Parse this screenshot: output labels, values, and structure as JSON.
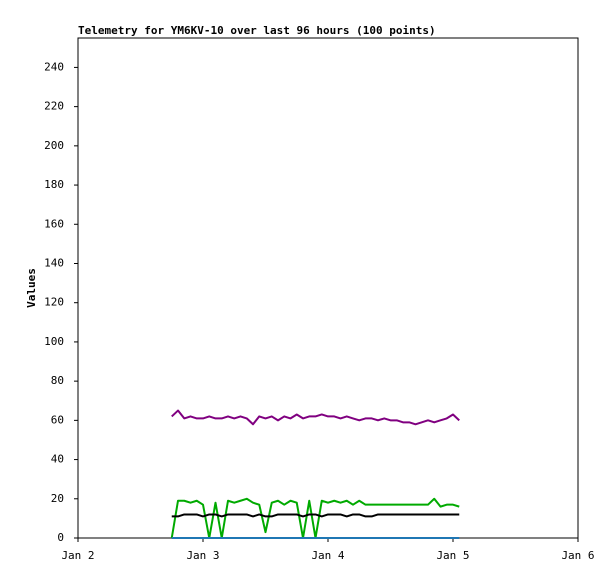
{
  "chart_data": {
    "type": "line",
    "title": "Telemetry for YM6KV-10 over last 96 hours (100 points)",
    "y_label": "Values",
    "x": [
      2.75,
      2.8,
      2.85,
      2.9,
      2.95,
      3,
      3.05,
      3.1,
      3.15,
      3.2,
      3.25,
      3.3,
      3.35,
      3.4,
      3.45,
      3.5,
      3.55,
      3.6,
      3.65,
      3.7,
      3.75,
      3.8,
      3.85,
      3.9,
      3.95,
      4,
      4.05,
      4.1,
      4.15,
      4.2,
      4.25,
      4.3,
      4.35,
      4.4,
      4.45,
      4.5,
      4.55,
      4.6,
      4.65,
      4.7,
      4.75,
      4.8,
      4.85,
      4.9,
      4.95,
      5,
      5.05
    ],
    "series": [
      {
        "color": "#800080",
        "values": [
          62,
          65,
          61,
          62,
          61,
          61,
          62,
          61,
          61,
          62,
          61,
          62,
          61,
          58,
          62,
          61,
          62,
          60,
          62,
          61,
          63,
          61,
          62,
          62,
          63,
          62,
          62,
          61,
          62,
          61,
          60,
          61,
          61,
          60,
          61,
          60,
          60,
          59,
          59,
          58,
          59,
          60,
          59,
          60,
          61,
          63,
          60
        ]
      },
      {
        "color": "#00aa00",
        "values": [
          0,
          19,
          19,
          18,
          19,
          17,
          0,
          18,
          0,
          19,
          18,
          19,
          20,
          18,
          17,
          3,
          18,
          19,
          17,
          19,
          18,
          0,
          19,
          0,
          19,
          18,
          19,
          18,
          19,
          17,
          19,
          17,
          17,
          17,
          17,
          17,
          17,
          17,
          17,
          17,
          17,
          17,
          20,
          16,
          17,
          17,
          16
        ]
      },
      {
        "color": "#000000",
        "values": [
          11,
          11,
          12,
          12,
          12,
          11,
          12,
          12,
          11,
          12,
          12,
          12,
          12,
          11,
          12,
          11,
          11,
          12,
          12,
          12,
          12,
          11,
          12,
          12,
          11,
          12,
          12,
          12,
          11,
          12,
          12,
          11,
          11,
          12,
          12,
          12,
          12,
          12,
          12,
          12,
          12,
          12,
          12,
          12,
          12,
          12,
          12
        ]
      },
      {
        "color": "#1f77b4",
        "values": [
          0,
          0,
          0,
          0,
          0,
          0,
          0,
          0,
          0,
          0,
          0,
          0,
          0,
          0,
          0,
          0,
          0,
          0,
          0,
          0,
          0,
          0,
          0,
          0,
          0,
          0,
          0,
          0,
          0,
          0,
          0,
          0,
          0,
          0,
          0,
          0,
          0,
          0,
          0,
          0,
          0,
          0,
          0,
          0,
          0,
          0,
          0
        ]
      }
    ],
    "xlim": [
      2,
      6
    ],
    "xticks": [
      {
        "value": 2,
        "label": "Jan 2"
      },
      {
        "value": 3,
        "label": "Jan 3"
      },
      {
        "value": 4,
        "label": "Jan 4"
      },
      {
        "value": 5,
        "label": "Jan 5"
      },
      {
        "value": 6,
        "label": "Jan 6"
      }
    ],
    "ylim": [
      0,
      255
    ],
    "yticks": [
      0,
      20,
      40,
      60,
      80,
      100,
      120,
      140,
      160,
      180,
      200,
      220,
      240
    ],
    "grid": false
  }
}
